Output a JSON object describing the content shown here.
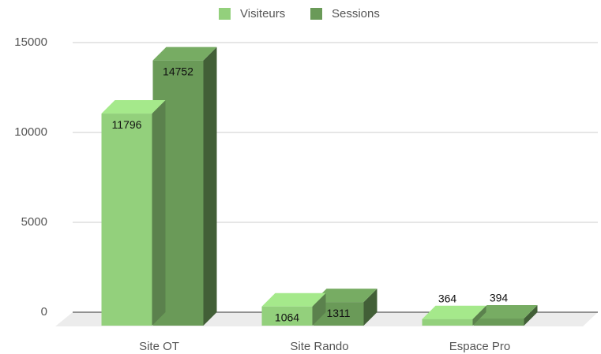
{
  "chart_data": {
    "type": "bar",
    "categories": [
      "Site OT",
      "Site Rando",
      "Espace Pro"
    ],
    "series": [
      {
        "name": "Visiteurs",
        "color": "#93d07c",
        "values": [
          11796,
          1064,
          364
        ]
      },
      {
        "name": "Sessions",
        "color": "#6a9a58",
        "values": [
          14752,
          1311,
          394
        ]
      }
    ],
    "ylim": [
      0,
      15000
    ],
    "yticks": [
      0,
      5000,
      10000,
      15000
    ],
    "grid": true,
    "legend": "top"
  }
}
